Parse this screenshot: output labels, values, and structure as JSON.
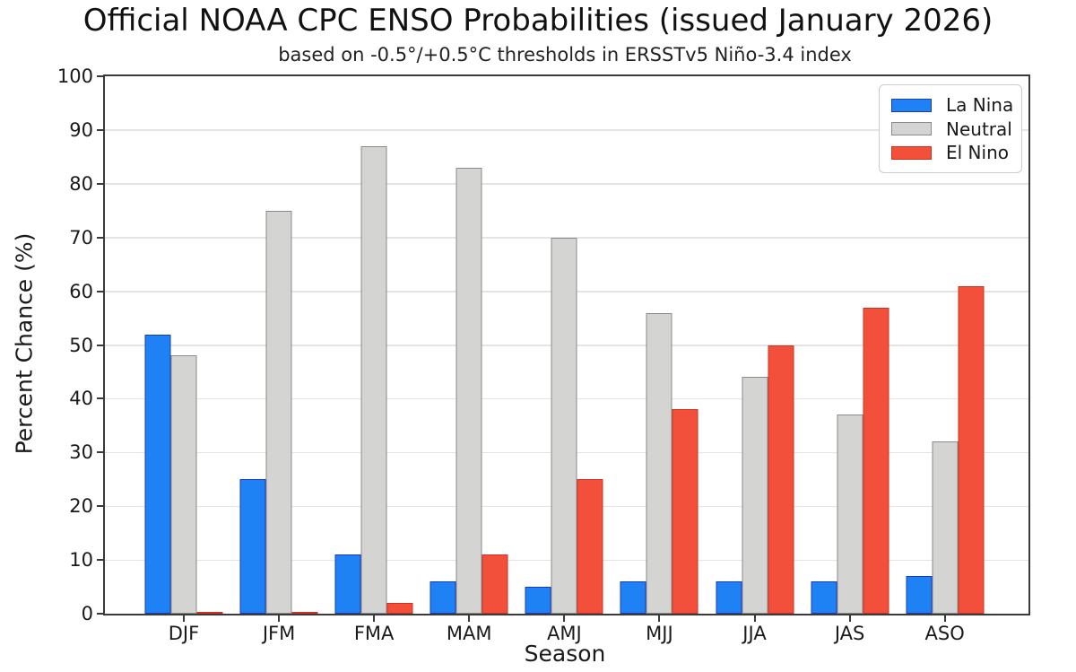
{
  "title": "Official NOAA CPC ENSO Probabilities (issued January 2026)",
  "subtitle": "based on -0.5°/+0.5°C thresholds in ERSSTv5 Niño-3.4 index",
  "chart_data": {
    "type": "bar",
    "categories": [
      "DJF",
      "JFM",
      "FMA",
      "MAM",
      "AMJ",
      "MJJ",
      "JJA",
      "JAS",
      "ASO"
    ],
    "series": [
      {
        "name": "La Nina",
        "color": "#1E82F5",
        "edge_color": "#1D3AB8",
        "values": [
          52,
          25,
          11,
          6,
          5,
          6,
          6,
          6,
          7
        ]
      },
      {
        "name": "Neutral",
        "color": "#D4D4D2",
        "edge_color": "#8A8A8A",
        "values": [
          48,
          75,
          87,
          83,
          70,
          56,
          44,
          37,
          32
        ]
      },
      {
        "name": "El Nino",
        "color": "#F3503B",
        "edge_color": "#CC3322",
        "values": [
          0,
          0,
          2,
          11,
          25,
          38,
          50,
          57,
          61
        ]
      }
    ],
    "title": "Official NOAA CPC ENSO Probabilities (issued January 2026)",
    "xlabel": "Season",
    "ylabel": "Percent Chance (%)",
    "ylim": [
      0,
      100
    ],
    "y_ticks": [
      0,
      10,
      20,
      30,
      40,
      50,
      60,
      70,
      80,
      90,
      100
    ],
    "grid": "horizontal",
    "legend_position": "upper right",
    "colors": {
      "grid": "#e4e4e4",
      "axis": "#3a3a3a",
      "background": "#ffffff"
    }
  }
}
